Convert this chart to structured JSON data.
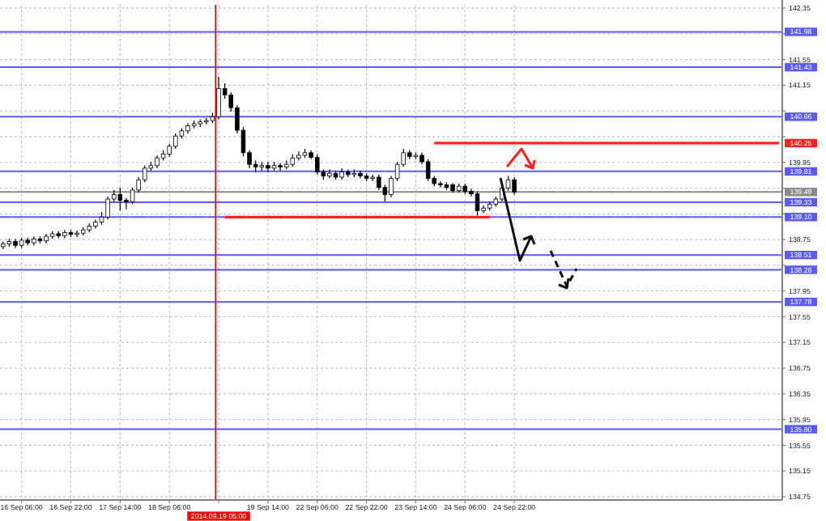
{
  "chart_data": {
    "type": "candlestick",
    "categories": [
      null,
      null,
      null,
      "16 Sep 06:00",
      null,
      null,
      null,
      null,
      null,
      null,
      null,
      "16 Sep 22:00",
      null,
      null,
      null,
      null,
      null,
      null,
      null,
      "17 Sep 14:00",
      null,
      null,
      null,
      null,
      null,
      null,
      null,
      "18 Sep 06:00",
      null,
      null,
      null,
      null,
      null,
      null,
      null,
      "2014.09.19 05:00",
      null,
      null,
      null,
      null,
      null,
      null,
      null,
      "19 Sep 14:00",
      null,
      null,
      null,
      null,
      null,
      null,
      null,
      "22 Sep 06:00",
      null,
      null,
      null,
      null,
      null,
      null,
      null,
      "22 Sep 22:00",
      null,
      null,
      null,
      null,
      null,
      null,
      null,
      "23 Sep 14:00",
      null,
      null,
      null,
      null,
      null,
      null,
      null,
      "24 Sep 06:00",
      null,
      null,
      null,
      null,
      null,
      null,
      null,
      "24 Sep 22:00",
      null,
      null,
      null,
      null,
      null,
      null,
      null,
      null,
      null,
      null,
      null,
      null,
      null,
      null,
      null,
      null,
      null,
      null,
      null,
      null,
      null,
      null,
      null,
      null,
      null,
      null,
      null,
      null,
      null,
      null,
      null,
      null,
      null,
      null,
      null,
      null,
      null,
      null,
      null,
      null,
      null,
      null,
      null
    ],
    "ohlc": [
      [
        138.64,
        138.72,
        138.6,
        138.68
      ],
      [
        138.68,
        138.76,
        138.64,
        138.72
      ],
      [
        138.72,
        138.76,
        138.62,
        138.66
      ],
      [
        138.66,
        138.78,
        138.62,
        138.74
      ],
      [
        138.74,
        138.78,
        138.66,
        138.7
      ],
      [
        138.7,
        138.8,
        138.66,
        138.76
      ],
      [
        138.76,
        138.8,
        138.69,
        138.73
      ],
      [
        138.73,
        138.84,
        138.69,
        138.8
      ],
      [
        138.8,
        138.88,
        138.76,
        138.84
      ],
      [
        138.84,
        138.88,
        138.77,
        138.81
      ],
      [
        138.81,
        138.9,
        138.77,
        138.86
      ],
      [
        138.86,
        138.9,
        138.79,
        138.83
      ],
      [
        138.83,
        138.89,
        138.79,
        138.85
      ],
      [
        138.85,
        138.94,
        138.81,
        138.9
      ],
      [
        138.9,
        139.0,
        138.86,
        138.96
      ],
      [
        138.96,
        139.06,
        138.92,
        139.02
      ],
      [
        139.02,
        139.18,
        138.98,
        139.1
      ],
      [
        139.1,
        139.42,
        139.06,
        139.38
      ],
      [
        139.38,
        139.52,
        139.34,
        139.45
      ],
      [
        139.45,
        139.56,
        139.2,
        139.36
      ],
      [
        139.36,
        139.4,
        139.22,
        139.34
      ],
      [
        139.34,
        139.56,
        139.3,
        139.52
      ],
      [
        139.52,
        139.72,
        139.48,
        139.68
      ],
      [
        139.68,
        139.9,
        139.64,
        139.86
      ],
      [
        139.86,
        139.96,
        139.82,
        139.9
      ],
      [
        139.9,
        140.06,
        139.86,
        140.02
      ],
      [
        140.02,
        140.14,
        139.98,
        140.08
      ],
      [
        140.08,
        140.24,
        140.04,
        140.2
      ],
      [
        140.2,
        140.4,
        140.16,
        140.36
      ],
      [
        140.36,
        140.48,
        140.32,
        140.44
      ],
      [
        140.44,
        140.56,
        140.4,
        140.52
      ],
      [
        140.52,
        140.6,
        140.48,
        140.55
      ],
      [
        140.55,
        140.62,
        140.5,
        140.58
      ],
      [
        140.58,
        140.64,
        140.54,
        140.6
      ],
      [
        140.6,
        140.72,
        140.56,
        140.66
      ],
      [
        140.66,
        141.28,
        140.62,
        141.1
      ],
      [
        141.1,
        141.18,
        140.94,
        141.0
      ],
      [
        141.0,
        141.04,
        140.74,
        140.8
      ],
      [
        140.8,
        140.84,
        140.4,
        140.45
      ],
      [
        140.45,
        140.5,
        140.04,
        140.1
      ],
      [
        140.1,
        140.14,
        139.86,
        139.92
      ],
      [
        139.92,
        139.98,
        139.8,
        139.88
      ],
      [
        139.88,
        139.96,
        139.82,
        139.9
      ],
      [
        139.9,
        139.96,
        139.8,
        139.86
      ],
      [
        139.86,
        139.96,
        139.82,
        139.9
      ],
      [
        139.9,
        139.94,
        139.82,
        139.88
      ],
      [
        139.88,
        139.98,
        139.84,
        139.92
      ],
      [
        139.92,
        140.08,
        139.88,
        140.02
      ],
      [
        140.02,
        140.12,
        139.98,
        140.06
      ],
      [
        140.06,
        140.16,
        140.02,
        140.1
      ],
      [
        140.1,
        140.14,
        140.0,
        140.03
      ],
      [
        140.03,
        140.08,
        139.76,
        139.8
      ],
      [
        139.8,
        139.84,
        139.68,
        139.74
      ],
      [
        139.74,
        139.84,
        139.7,
        139.78
      ],
      [
        139.78,
        139.82,
        139.68,
        139.72
      ],
      [
        139.72,
        139.86,
        139.68,
        139.8
      ],
      [
        139.8,
        139.84,
        139.72,
        139.76
      ],
      [
        139.76,
        139.84,
        139.72,
        139.78
      ],
      [
        139.78,
        139.82,
        139.7,
        139.74
      ],
      [
        139.74,
        139.78,
        139.66,
        139.7
      ],
      [
        139.7,
        139.76,
        139.66,
        139.72
      ],
      [
        139.72,
        139.76,
        139.52,
        139.56
      ],
      [
        139.56,
        139.6,
        139.34,
        139.45
      ],
      [
        139.45,
        139.74,
        139.41,
        139.7
      ],
      [
        139.7,
        139.96,
        139.66,
        139.92
      ],
      [
        139.92,
        140.16,
        139.88,
        140.1
      ],
      [
        140.1,
        140.14,
        140.0,
        140.04
      ],
      [
        140.04,
        140.1,
        140.0,
        140.06
      ],
      [
        140.06,
        140.1,
        139.92,
        139.96
      ],
      [
        139.96,
        140.0,
        139.66,
        139.7
      ],
      [
        139.7,
        139.74,
        139.58,
        139.62
      ],
      [
        139.62,
        139.66,
        139.56,
        139.6
      ],
      [
        139.6,
        139.64,
        139.52,
        139.56
      ],
      [
        139.6,
        139.63,
        139.48,
        139.51
      ],
      [
        139.51,
        139.62,
        139.48,
        139.58
      ],
      [
        139.58,
        139.62,
        139.46,
        139.5
      ],
      [
        139.5,
        139.54,
        139.42,
        139.46
      ],
      [
        139.46,
        139.5,
        139.12,
        139.2
      ],
      [
        139.2,
        139.28,
        139.16,
        139.24
      ],
      [
        139.24,
        139.34,
        139.2,
        139.3
      ],
      [
        139.3,
        139.42,
        139.26,
        139.38
      ],
      [
        139.38,
        139.59,
        139.34,
        139.55
      ],
      [
        139.55,
        139.74,
        139.51,
        139.68
      ],
      [
        139.68,
        139.72,
        139.45,
        139.49
      ],
      null,
      null,
      null,
      null,
      null,
      null,
      null,
      null,
      null,
      null,
      null,
      null,
      null,
      null,
      null,
      null,
      null,
      null,
      null,
      null,
      null,
      null,
      null,
      null,
      null,
      null,
      null,
      null,
      null,
      null,
      null,
      null,
      null,
      null,
      null,
      null,
      null,
      null,
      null,
      null,
      null,
      null,
      null
    ],
    "series": [
      {
        "type": "line",
        "color": "#ff2020",
        "values": [
          null,
          null,
          null,
          null,
          null,
          null,
          null,
          null,
          null,
          null,
          null,
          null,
          null,
          null,
          null,
          null,
          null,
          null,
          null,
          null,
          null,
          null,
          null,
          null,
          null,
          null,
          null,
          null,
          null,
          null,
          null,
          null,
          null,
          null,
          null,
          null,
          null,
          null,
          null,
          null,
          null,
          null,
          null,
          null,
          null,
          null,
          null,
          null,
          null,
          null,
          null,
          null,
          null,
          null,
          null,
          null,
          null,
          null,
          null,
          null,
          null,
          null,
          null,
          null,
          null,
          null,
          null,
          null,
          null,
          null,
          140.25,
          140.25,
          140.25,
          140.25,
          140.25,
          140.25,
          140.25,
          140.25,
          140.25,
          140.25,
          140.25,
          140.25,
          140.25,
          140.25,
          140.25,
          140.25,
          140.25,
          140.25,
          140.25,
          140.25,
          140.25,
          140.25,
          140.25,
          140.25,
          140.25,
          140.25,
          140.25,
          140.25,
          140.25,
          140.25,
          140.25,
          140.25,
          140.25,
          140.25,
          140.25,
          140.25,
          140.25,
          140.25,
          140.25,
          140.25,
          140.25,
          140.25,
          140.25,
          140.25,
          140.25,
          140.25,
          140.25,
          140.25,
          140.25,
          140.25,
          140.25,
          140.25,
          140.25,
          140.25,
          140.25,
          140.25,
          140.25
        ],
        "value_labels": [
          null,
          null,
          null,
          null,
          null,
          null,
          null,
          null,
          null,
          null,
          null,
          null,
          null,
          null,
          null,
          null,
          null,
          null,
          null,
          null,
          null,
          null,
          null,
          null,
          null,
          null,
          null,
          null,
          null,
          null,
          null,
          null,
          null,
          null,
          null,
          null,
          null,
          null,
          null,
          null,
          null,
          null,
          null,
          null,
          null,
          null,
          null,
          null,
          null,
          null,
          null,
          null,
          null,
          null,
          null,
          null,
          null,
          null,
          null,
          null,
          null,
          null,
          null,
          null,
          null,
          null,
          null,
          null,
          null,
          null,
          null,
          null,
          null,
          null,
          null,
          null,
          null,
          null,
          null,
          null,
          null,
          null,
          null,
          null,
          null,
          null,
          null,
          null,
          null,
          null,
          null,
          null,
          null,
          null,
          null,
          null,
          null,
          null,
          null,
          null,
          null,
          null,
          null,
          null,
          null,
          null,
          null,
          null,
          null,
          null,
          null,
          null,
          null,
          null,
          null,
          null,
          null,
          null,
          null,
          null,
          null,
          null,
          null,
          null,
          null,
          null,
          "140.25"
        ]
      },
      {
        "type": "line",
        "color": "#ff2020",
        "values": [
          null,
          null,
          null,
          null,
          null,
          null,
          null,
          null,
          null,
          null,
          null,
          null,
          null,
          null,
          null,
          null,
          null,
          null,
          null,
          null,
          null,
          null,
          null,
          null,
          null,
          null,
          null,
          null,
          null,
          null,
          null,
          null,
          null,
          null,
          null,
          null,
          139.1,
          139.1,
          139.1,
          139.1,
          139.1,
          139.1,
          139.1,
          139.1,
          139.1,
          139.1,
          139.1,
          139.1,
          139.1,
          139.1,
          139.1,
          139.1,
          139.1,
          139.1,
          139.1,
          139.1,
          139.1,
          139.1,
          139.1,
          139.1,
          139.1,
          139.1,
          139.1,
          139.1,
          139.1,
          139.1,
          139.1,
          139.1,
          139.1,
          139.1,
          139.1,
          139.1,
          139.1,
          139.1,
          139.1,
          139.1,
          139.1,
          139.1,
          139.1,
          139.1,
          null,
          null,
          null,
          null,
          null,
          null,
          null,
          null,
          null,
          null,
          null,
          null,
          null,
          null,
          null,
          null,
          null,
          null,
          null,
          null,
          null,
          null,
          null,
          null,
          null,
          null,
          null,
          null,
          null,
          null,
          null,
          null,
          null,
          null,
          null,
          null,
          null,
          null,
          null,
          null,
          null,
          null,
          null,
          null,
          null,
          null,
          null
        ]
      }
    ],
    "ylim": [
      134.7,
      142.4
    ],
    "yticks": [
      134.75,
      135.15,
      135.55,
      135.95,
      136.35,
      136.75,
      137.15,
      137.55,
      137.95,
      {
        "value": 138.35,
        "label": null
      },
      138.75,
      {
        "value": 139.15,
        "label": null
      },
      {
        "value": 139.55,
        "label": null
      },
      139.95,
      {
        "value": 140.35,
        "label": null
      },
      {
        "value": 140.75,
        "label": null
      },
      141.15,
      141.55,
      {
        "value": 141.95,
        "label": null
      },
      142.35
    ],
    "ref_lines": [
      {
        "axis": "x",
        "value": "2014.09.19 05:00",
        "color": "#ff0000"
      },
      {
        "axis": "y",
        "value": 141.98,
        "label": "141.98",
        "color": "#5a5aff"
      },
      {
        "axis": "y",
        "value": 141.43,
        "label": "141.43",
        "color": "#5a5aff"
      },
      {
        "axis": "y",
        "value": 140.66,
        "label": "140.66",
        "color": "#5a5aff"
      },
      {
        "axis": "y",
        "value": 139.81,
        "label": "139.81",
        "color": "#5a5aff"
      },
      {
        "axis": "y",
        "value": 139.49,
        "label": "139.49",
        "color": "#8a8a8a"
      },
      {
        "axis": "y",
        "value": 139.33,
        "label": "139.33",
        "color": "#5a5aff"
      },
      {
        "axis": "y",
        "value": 139.1,
        "label": "139.10",
        "color": "#5a5aff"
      },
      {
        "axis": "y",
        "value": 138.51,
        "label": "138.51",
        "color": "#5a5aff"
      },
      {
        "axis": "y",
        "value": 138.28,
        "label": "138.28",
        "color": "#5a5aff"
      },
      {
        "axis": "y",
        "value": 137.78,
        "label": "137.78",
        "color": "#5a5aff"
      },
      {
        "axis": "y",
        "value": 135.8,
        "label": "135.80",
        "color": "#5a5aff"
      }
    ],
    "grid": true
  }
}
